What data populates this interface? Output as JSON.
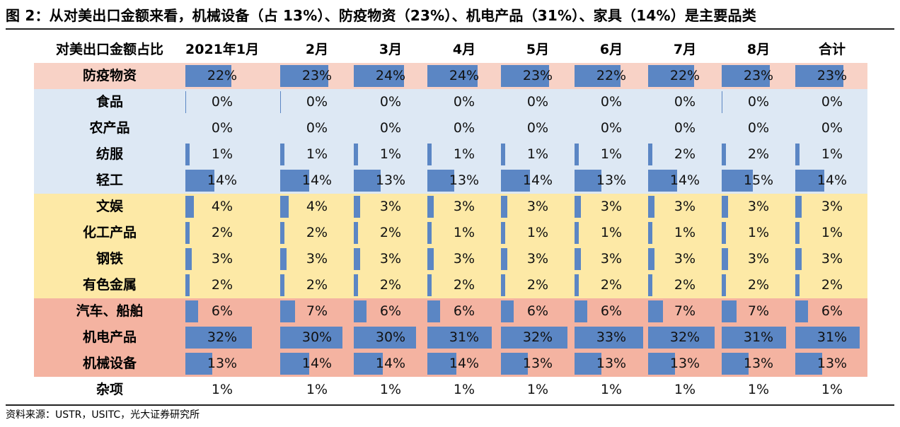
{
  "title": "图 2：从对美出口金额来看，机械设备（占 13%）、防疫物资（23%）、机电产品（31%）、家具（14%）是主要品类",
  "source": "资料来源：USTR，USITC，光大证券研究所",
  "colors": {
    "bar": "#5b86c4",
    "group_pink": "#f8d2c6",
    "group_blue": "#dde8f4",
    "group_yellow": "#fde9a6",
    "group_salmon": "#f4b3a1"
  },
  "chart_data": {
    "type": "table",
    "corner_label": "对美出口金额占比",
    "columns": [
      "2021年1月",
      "2月",
      "3月",
      "4月",
      "5月",
      "6月",
      "7月",
      "8月",
      "合计"
    ],
    "rows": [
      {
        "label": "防疫物资",
        "group": "pink",
        "values": [
          0.22,
          0.23,
          0.24,
          0.24,
          0.23,
          0.22,
          0.22,
          0.23,
          0.23
        ],
        "texts": [
          "22%",
          "23%",
          "24%",
          "24%",
          "23%",
          "22%",
          "22%",
          "23%",
          "23%"
        ]
      },
      {
        "label": "食品",
        "group": "blue",
        "values": [
          0.0,
          0.0,
          0.0,
          0.0,
          0.0,
          0.0,
          0.0,
          0.0,
          0.0
        ],
        "texts": [
          "0%",
          "0%",
          "0%",
          "0%",
          "0%",
          "0%",
          "0%",
          "0%",
          "0%"
        ]
      },
      {
        "label": "农产品",
        "group": "blue",
        "values": [
          0.0,
          0.0,
          0.0,
          0.0,
          0.0,
          0.0,
          0.0,
          0.0,
          0.0
        ],
        "texts": [
          "0%",
          "0%",
          "0%",
          "0%",
          "0%",
          "0%",
          "0%",
          "0%",
          "0%"
        ]
      },
      {
        "label": "纺服",
        "group": "blue",
        "values": [
          0.01,
          0.01,
          0.01,
          0.01,
          0.01,
          0.01,
          0.02,
          0.02,
          0.01
        ],
        "texts": [
          "1%",
          "1%",
          "1%",
          "1%",
          "1%",
          "1%",
          "2%",
          "2%",
          "1%"
        ]
      },
      {
        "label": "轻工",
        "group": "blue",
        "values": [
          0.14,
          0.14,
          0.13,
          0.13,
          0.14,
          0.13,
          0.14,
          0.15,
          0.14
        ],
        "texts": [
          "14%",
          "14%",
          "13%",
          "13%",
          "14%",
          "13%",
          "14%",
          "15%",
          "14%"
        ]
      },
      {
        "label": "文娱",
        "group": "yellow",
        "values": [
          0.04,
          0.04,
          0.03,
          0.03,
          0.03,
          0.03,
          0.03,
          0.03,
          0.03
        ],
        "texts": [
          "4%",
          "4%",
          "3%",
          "3%",
          "3%",
          "3%",
          "3%",
          "3%",
          "3%"
        ]
      },
      {
        "label": "化工产品",
        "group": "yellow",
        "values": [
          0.02,
          0.02,
          0.02,
          0.01,
          0.01,
          0.01,
          0.01,
          0.01,
          0.01
        ],
        "texts": [
          "2%",
          "2%",
          "2%",
          "1%",
          "1%",
          "1%",
          "1%",
          "1%",
          "1%"
        ]
      },
      {
        "label": "钢铁",
        "group": "yellow",
        "values": [
          0.03,
          0.03,
          0.03,
          0.03,
          0.03,
          0.03,
          0.03,
          0.03,
          0.03
        ],
        "texts": [
          "3%",
          "3%",
          "3%",
          "3%",
          "3%",
          "3%",
          "3%",
          "3%",
          "3%"
        ]
      },
      {
        "label": "有色金属",
        "group": "yellow",
        "values": [
          0.02,
          0.02,
          0.02,
          0.02,
          0.02,
          0.02,
          0.02,
          0.02,
          0.02
        ],
        "texts": [
          "2%",
          "2%",
          "2%",
          "2%",
          "2%",
          "2%",
          "2%",
          "2%",
          "2%"
        ]
      },
      {
        "label": "汽车、船舶",
        "group": "salmon",
        "values": [
          0.06,
          0.07,
          0.06,
          0.06,
          0.06,
          0.06,
          0.07,
          0.07,
          0.06
        ],
        "texts": [
          "6%",
          "7%",
          "6%",
          "6%",
          "6%",
          "6%",
          "7%",
          "7%",
          "6%"
        ]
      },
      {
        "label": "机电产品",
        "group": "salmon",
        "values": [
          0.32,
          0.3,
          0.3,
          0.31,
          0.32,
          0.33,
          0.32,
          0.31,
          0.31
        ],
        "texts": [
          "32%",
          "30%",
          "30%",
          "31%",
          "32%",
          "33%",
          "32%",
          "31%",
          "31%"
        ]
      },
      {
        "label": "机械设备",
        "group": "salmon",
        "values": [
          0.13,
          0.14,
          0.14,
          0.14,
          0.13,
          0.13,
          0.13,
          0.13,
          0.13
        ],
        "texts": [
          "13%",
          "14%",
          "14%",
          "14%",
          "13%",
          "13%",
          "13%",
          "13%",
          "13%"
        ]
      },
      {
        "label": "杂项",
        "group": "none",
        "values": [
          0.01,
          0.01,
          0.01,
          0.01,
          0.01,
          0.01,
          0.01,
          0.01,
          0.01
        ],
        "texts": [
          "1%",
          "1%",
          "1%",
          "1%",
          "1%",
          "1%",
          "1%",
          "1%",
          "1%"
        ],
        "no_bar": true
      }
    ]
  }
}
